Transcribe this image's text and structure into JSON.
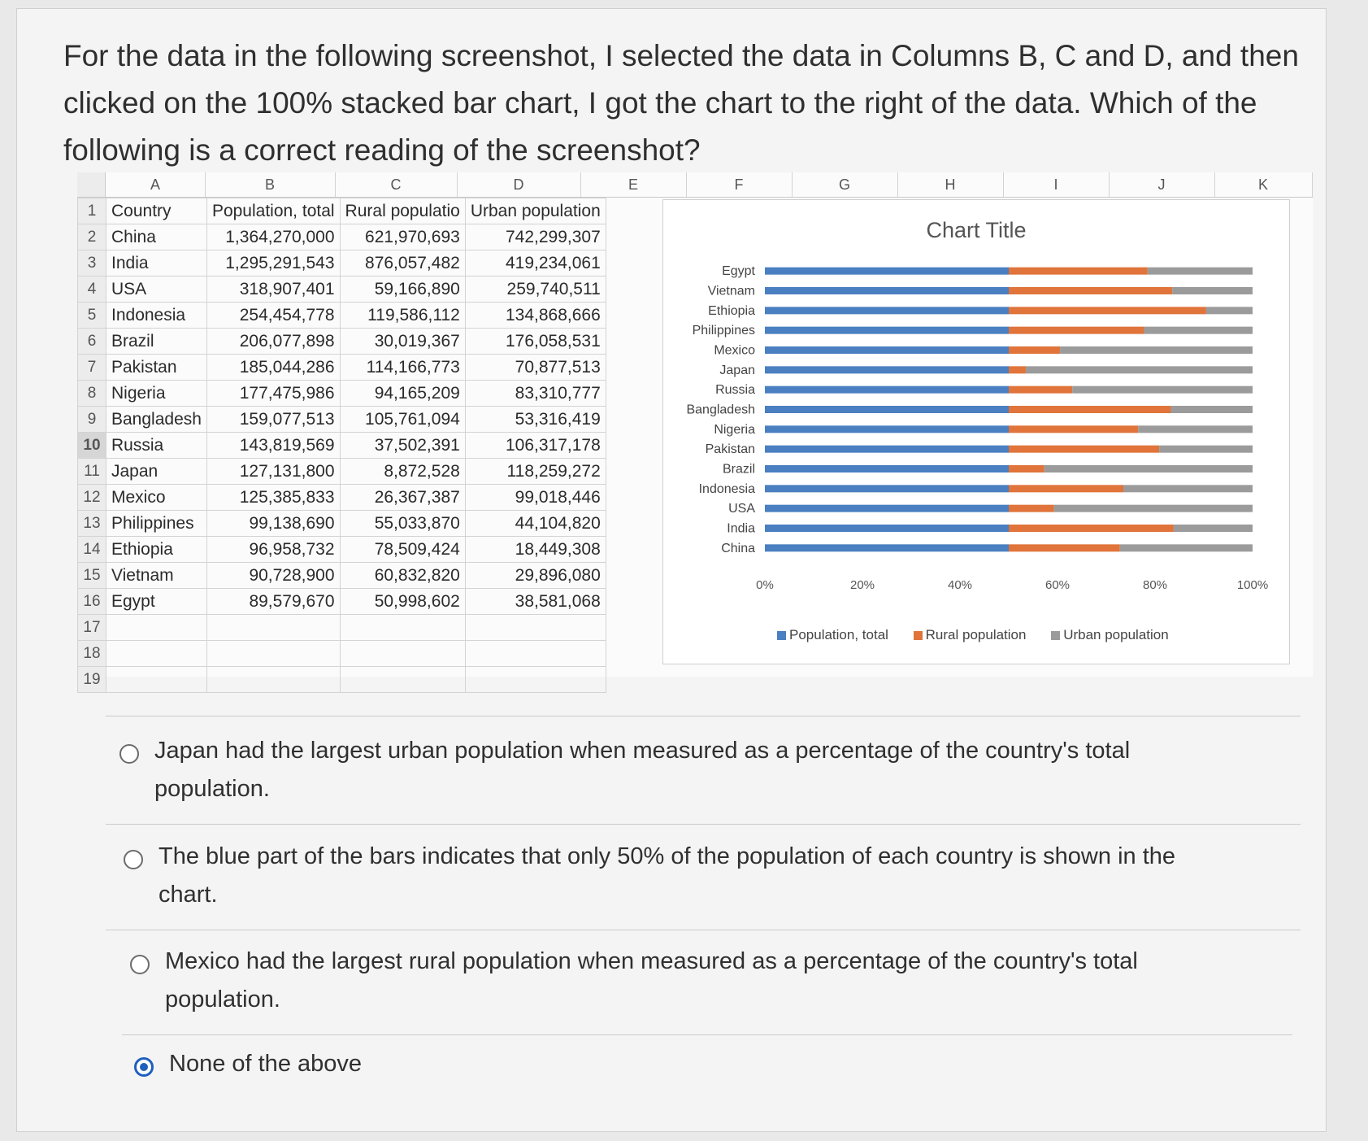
{
  "question": "For the data in the following screenshot, I selected the data in Columns B, C and D, and then clicked on the 100% stacked bar chart, I got the chart to the right of the data. Which of the following is a correct reading of the screenshot?",
  "sheet": {
    "column_letters": [
      "A",
      "B",
      "C",
      "D",
      "E",
      "F",
      "G",
      "H",
      "I",
      "J",
      "K"
    ],
    "headers": [
      "Country",
      "Population, total",
      "Rural populatio",
      "Urban population"
    ],
    "rows": [
      [
        "China",
        "1,364,270,000",
        "621,970,693",
        "742,299,307"
      ],
      [
        "India",
        "1,295,291,543",
        "876,057,482",
        "419,234,061"
      ],
      [
        "USA",
        "318,907,401",
        "59,166,890",
        "259,740,511"
      ],
      [
        "Indonesia",
        "254,454,778",
        "119,586,112",
        "134,868,666"
      ],
      [
        "Brazil",
        "206,077,898",
        "30,019,367",
        "176,058,531"
      ],
      [
        "Pakistan",
        "185,044,286",
        "114,166,773",
        "70,877,513"
      ],
      [
        "Nigeria",
        "177,475,986",
        "94,165,209",
        "83,310,777"
      ],
      [
        "Bangladesh",
        "159,077,513",
        "105,761,094",
        "53,316,419"
      ],
      [
        "Russia",
        "143,819,569",
        "37,502,391",
        "106,317,178"
      ],
      [
        "Japan",
        "127,131,800",
        "8,872,528",
        "118,259,272"
      ],
      [
        "Mexico",
        "125,385,833",
        "26,367,387",
        "99,018,446"
      ],
      [
        "Philippines",
        "99,138,690",
        "55,033,870",
        "44,104,820"
      ],
      [
        "Ethiopia",
        "96,958,732",
        "78,509,424",
        "18,449,308"
      ],
      [
        "Vietnam",
        "90,728,900",
        "60,832,820",
        "29,896,080"
      ],
      [
        "Egypt",
        "89,579,670",
        "50,998,602",
        "38,581,068"
      ]
    ],
    "row_numbers": [
      "1",
      "2",
      "3",
      "4",
      "5",
      "6",
      "7",
      "8",
      "9",
      "10",
      "11",
      "12",
      "13",
      "14",
      "15",
      "16",
      "17",
      "18",
      "19"
    ],
    "selected_row": "10"
  },
  "chart_data": {
    "type": "bar",
    "stacked": "100%",
    "orientation": "horizontal",
    "title": "Chart Title",
    "categories": [
      "China",
      "India",
      "USA",
      "Indonesia",
      "Brazil",
      "Pakistan",
      "Nigeria",
      "Bangladesh",
      "Russia",
      "Japan",
      "Mexico",
      "Philippines",
      "Ethiopia",
      "Vietnam",
      "Egypt"
    ],
    "series": [
      {
        "name": "Population, total",
        "color": "#4a7fc1",
        "values": [
          1364270000,
          1295291543,
          318907401,
          254454778,
          206077898,
          185044286,
          177475986,
          159077513,
          143819569,
          127131800,
          125385833,
          99138690,
          96958732,
          90728900,
          89579670
        ]
      },
      {
        "name": "Rural population",
        "color": "#e0743a",
        "values": [
          621970693,
          876057482,
          59166890,
          119586112,
          30019367,
          114166773,
          94165209,
          105761094,
          37502391,
          8872528,
          26367387,
          55033870,
          78509424,
          60832820,
          50998602
        ]
      },
      {
        "name": "Urban population",
        "color": "#9b9b9b",
        "values": [
          742299307,
          419234061,
          259740511,
          134868666,
          176058531,
          70877513,
          83310777,
          53316419,
          106317178,
          118259272,
          99018446,
          44104820,
          18449308,
          29896080,
          38581068
        ]
      }
    ],
    "x_ticks": [
      "0%",
      "20%",
      "40%",
      "60%",
      "80%",
      "100%"
    ],
    "xlim": [
      0,
      100
    ],
    "legend": "bottom"
  },
  "options": [
    {
      "text": "Japan had the largest urban population when measured as a percentage of the country's total population.",
      "checked": false
    },
    {
      "text": "The blue part of the bars indicates that only 50% of the population of each country is shown in the chart.",
      "checked": false
    },
    {
      "text": "Mexico had the largest rural population when measured as a percentage of the country's total population.",
      "checked": false
    },
    {
      "text": "None of the above",
      "checked": true
    }
  ]
}
